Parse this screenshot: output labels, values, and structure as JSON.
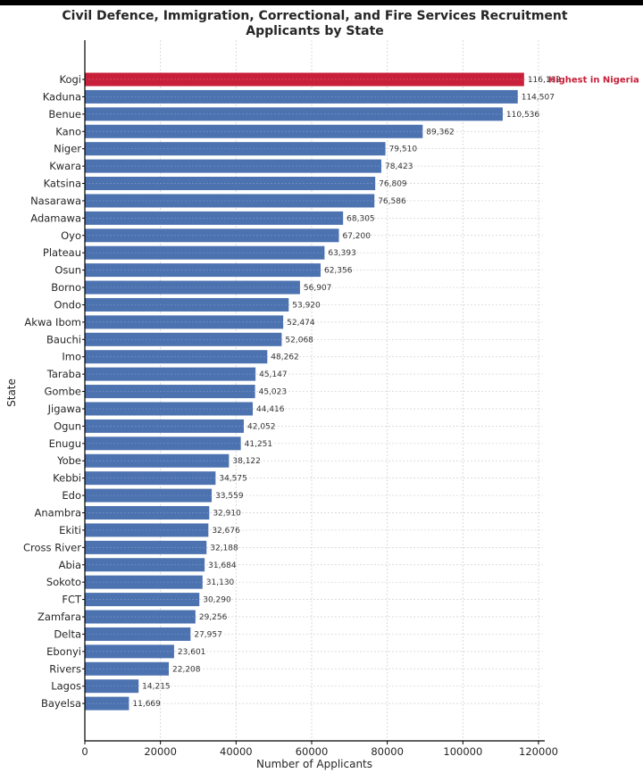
{
  "chart_data": {
    "type": "bar",
    "orientation": "horizontal",
    "title": "Civil Defence, Immigration, Correctional, and Fire Services Recruitment Applicants by State",
    "title_lines": [
      "Civil Defence, Immigration, Correctional, and Fire Services Recruitment",
      "Applicants by State"
    ],
    "xlabel": "Number of Applicants",
    "ylabel": "State",
    "xlim": [
      0,
      120000
    ],
    "xticks": [
      0,
      20000,
      40000,
      60000,
      80000,
      100000,
      120000
    ],
    "xtick_labels": [
      "0",
      "20000",
      "40000",
      "60000",
      "80000",
      "100000",
      "120000"
    ],
    "grid": true,
    "grid_style": "dashed",
    "bar_color": "#4c72b0",
    "highlight_color": "#c8203a",
    "annotation": {
      "category": "Kogi",
      "text": "Highest in Nigeria",
      "color": "#c8203a"
    },
    "categories": [
      "Kogi",
      "Kaduna",
      "Benue",
      "Kano",
      "Niger",
      "Kwara",
      "Katsina",
      "Nasarawa",
      "Adamawa",
      "Oyo",
      "Plateau",
      "Osun",
      "Borno",
      "Ondo",
      "Akwa Ibom",
      "Bauchi",
      "Imo",
      "Taraba",
      "Gombe",
      "Jigawa",
      "Ogun",
      "Enugu",
      "Yobe",
      "Kebbi",
      "Edo",
      "Anambra",
      "Ekiti",
      "Cross River",
      "Abia",
      "Sokoto",
      "FCT",
      "Zamfara",
      "Delta",
      "Ebonyi",
      "Rivers",
      "Lagos",
      "Bayelsa"
    ],
    "values": [
      116182,
      114507,
      110536,
      89362,
      79510,
      78423,
      76809,
      76586,
      68305,
      67200,
      63393,
      62356,
      56907,
      53920,
      52474,
      52068,
      48262,
      45147,
      45023,
      44416,
      42052,
      41251,
      38122,
      34575,
      33559,
      32910,
      32676,
      32188,
      31684,
      31130,
      30290,
      29256,
      27957,
      23601,
      22208,
      14215,
      11669
    ],
    "value_labels": [
      "116,182",
      "114,507",
      "110,536",
      "89,362",
      "79,510",
      "78,423",
      "76,809",
      "76,586",
      "68,305",
      "67,200",
      "63,393",
      "62,356",
      "56,907",
      "53,920",
      "52,474",
      "52,068",
      "48,262",
      "45,147",
      "45,023",
      "44,416",
      "42,052",
      "41,251",
      "38,122",
      "34,575",
      "33,559",
      "32,910",
      "32,676",
      "32,188",
      "31,684",
      "31,130",
      "30,290",
      "29,256",
      "27,957",
      "23,601",
      "22,208",
      "14,215",
      "11,669"
    ]
  }
}
